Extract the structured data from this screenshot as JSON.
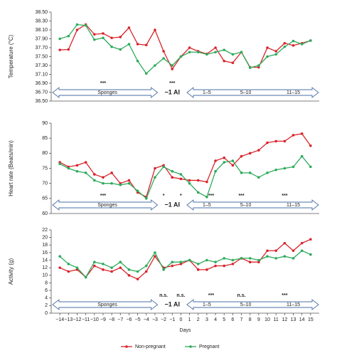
{
  "chart_data": [
    {
      "type": "line",
      "ylabel": "Temperature (°C)",
      "x": [
        -14,
        -13,
        -12,
        -11,
        -10,
        -9,
        -8,
        -7,
        -6,
        -5,
        -4,
        -3,
        -2,
        -1,
        0,
        1,
        2,
        3,
        4,
        5,
        6,
        7,
        8,
        9,
        10,
        11,
        12,
        13,
        14,
        15
      ],
      "xlim": [
        -15,
        16
      ],
      "ylim": [
        36.5,
        38.5
      ],
      "yticks": [
        {
          "value": 36.5,
          "label": "36.50"
        },
        {
          "value": 36.7,
          "label": "36.70"
        },
        {
          "value": 36.9,
          "label": "36.90"
        },
        {
          "value": 37.1,
          "label": "37.10"
        },
        {
          "value": 37.3,
          "label": "37.30"
        },
        {
          "value": 37.5,
          "label": "37.50"
        },
        {
          "value": 37.7,
          "label": "37.70"
        },
        {
          "value": 37.9,
          "label": "37.90"
        },
        {
          "value": 38.1,
          "label": "38.10"
        },
        {
          "value": 38.3,
          "label": "38.30"
        },
        {
          "value": 38.5,
          "label": "38.50"
        }
      ],
      "series": [
        {
          "color": "#d9242b",
          "values": [
            37.65,
            37.66,
            38.1,
            38.22,
            38.0,
            38.02,
            37.92,
            37.94,
            38.15,
            37.78,
            37.76,
            38.1,
            37.62,
            37.22,
            37.5,
            37.7,
            37.62,
            37.56,
            37.7,
            37.4,
            37.36,
            37.6,
            37.26,
            37.26,
            37.7,
            37.62,
            37.8,
            37.75,
            37.8,
            37.86
          ]
        },
        {
          "color": "#2eab5c",
          "values": [
            37.9,
            37.96,
            38.22,
            38.2,
            37.88,
            37.92,
            37.72,
            37.66,
            37.78,
            37.4,
            37.12,
            37.3,
            37.46,
            37.3,
            37.5,
            37.6,
            37.6,
            37.55,
            37.6,
            37.65,
            37.55,
            37.6,
            37.25,
            37.3,
            37.5,
            37.55,
            37.72,
            37.85,
            37.78,
            37.86
          ]
        }
      ],
      "annotations": [
        {
          "text": "***",
          "day": -9
        },
        {
          "text": "***",
          "day": -1
        }
      ],
      "phases": [
        {
          "text": "Sponges",
          "day": -8.5
        },
        {
          "text": "−1 AI",
          "day": -1
        },
        {
          "text": "1–5",
          "day": 3
        },
        {
          "text": "5–10",
          "day": 7.5
        },
        {
          "text": "11–15",
          "day": 13
        }
      ]
    },
    {
      "type": "line",
      "ylabel": "Heart rate (Beats/min)",
      "x": [
        -14,
        -13,
        -12,
        -11,
        -10,
        -9,
        -8,
        -7,
        -6,
        -5,
        -4,
        -3,
        -2,
        -1,
        0,
        1,
        2,
        3,
        4,
        5,
        6,
        7,
        8,
        9,
        10,
        11,
        12,
        13,
        14,
        15
      ],
      "xlim": [
        -15,
        16
      ],
      "ylim": [
        60,
        90
      ],
      "yticks": [
        60,
        65,
        70,
        75,
        80,
        85,
        90
      ],
      "series": [
        {
          "color": "#d9242b",
          "values": [
            77,
            75.5,
            76,
            77,
            73,
            72,
            73.5,
            70,
            71,
            67,
            65.5,
            75,
            76,
            72,
            71.5,
            71,
            71,
            70.5,
            77.5,
            78.5,
            76,
            79,
            80,
            81,
            83.5,
            84,
            84,
            86,
            86.5,
            82.5
          ]
        },
        {
          "color": "#2eab5c",
          "values": [
            76.5,
            75,
            74,
            73.5,
            71,
            70,
            70,
            69.5,
            70,
            67.5,
            65,
            72,
            75.5,
            74,
            73,
            70,
            67,
            65.5,
            74,
            77,
            77.5,
            73.5,
            73.5,
            72,
            73.5,
            74.5,
            75,
            75.5,
            79,
            75.5
          ]
        }
      ],
      "annotations": [
        {
          "text": "***",
          "day": -9
        },
        {
          "text": "*",
          "day": -2
        },
        {
          "text": "*",
          "day": 0
        },
        {
          "text": "***",
          "day": 3.5
        },
        {
          "text": "***",
          "day": 7
        },
        {
          "text": "***",
          "day": 12
        }
      ],
      "phases": [
        {
          "text": "Sponges",
          "day": -8.5
        },
        {
          "text": "−1 AI",
          "day": -1
        },
        {
          "text": "1–5",
          "day": 3
        },
        {
          "text": "5–10",
          "day": 7.5
        },
        {
          "text": "11–15",
          "day": 13
        }
      ]
    },
    {
      "type": "line",
      "ylabel": "Activity (g)",
      "xlabel": "Days",
      "x": [
        -14,
        -13,
        -12,
        -11,
        -10,
        -9,
        -8,
        -7,
        -6,
        -5,
        -4,
        -3,
        -2,
        -1,
        0,
        1,
        2,
        3,
        4,
        5,
        6,
        7,
        8,
        9,
        10,
        11,
        12,
        13,
        14,
        15
      ],
      "xlim": [
        -15,
        16
      ],
      "ylim": [
        0,
        22
      ],
      "yticks": [
        0,
        2,
        4,
        6,
        8,
        10,
        12,
        14,
        16,
        18,
        20,
        22
      ],
      "xticks": [
        {
          "value": -14,
          "label": "−14"
        },
        {
          "value": -13,
          "label": "−13"
        },
        {
          "value": -12,
          "label": "−12"
        },
        {
          "value": -11,
          "label": "−11"
        },
        {
          "value": -10,
          "label": "−10"
        },
        {
          "value": -9,
          "label": "−9"
        },
        {
          "value": -8,
          "label": "−8"
        },
        {
          "value": -7,
          "label": "−7"
        },
        {
          "value": -6,
          "label": "−6"
        },
        {
          "value": -5,
          "label": "−5"
        },
        {
          "value": -4,
          "label": "−4"
        },
        {
          "value": -3,
          "label": "−3"
        },
        {
          "value": -2,
          "label": "−2"
        },
        {
          "value": -1,
          "label": "−1"
        },
        0,
        1,
        2,
        3,
        4,
        5,
        6,
        7,
        8,
        9,
        10,
        11,
        12,
        13,
        14,
        15
      ],
      "series": [
        {
          "name": "Non-pregnant",
          "color": "#d9242b",
          "values": [
            12,
            11,
            11.5,
            9.5,
            12.5,
            11.5,
            11,
            12,
            10,
            9,
            11,
            15,
            12,
            12.5,
            13,
            14,
            11.5,
            11.5,
            12.5,
            12.5,
            13,
            14.5,
            13.5,
            13.5,
            16.5,
            16.5,
            18.5,
            16.5,
            18.5,
            19.5
          ]
        },
        {
          "name": "Pregnant",
          "color": "#2eab5c",
          "values": [
            15,
            13,
            12,
            9.5,
            13.5,
            13,
            12,
            13.5,
            11.5,
            11,
            12.5,
            16,
            11.5,
            13.5,
            13.5,
            14,
            13,
            14,
            13.5,
            14.5,
            14,
            14.5,
            14.5,
            14,
            15,
            14.5,
            15,
            14.5,
            16.5,
            15.5
          ]
        }
      ],
      "annotations": [
        {
          "text": "n.s.",
          "day": -2
        },
        {
          "text": "n.s.",
          "day": 0
        },
        {
          "text": "***",
          "day": 3.5
        },
        {
          "text": "n.s.",
          "day": 7
        },
        {
          "text": "***",
          "day": 12
        }
      ],
      "phases": [
        {
          "text": "Sponges",
          "day": -8.5
        },
        {
          "text": "−1 AI",
          "day": -1
        },
        {
          "text": "1–5",
          "day": 3
        },
        {
          "text": "5–10",
          "day": 7.5
        },
        {
          "text": "11–15",
          "day": 13
        }
      ]
    }
  ]
}
